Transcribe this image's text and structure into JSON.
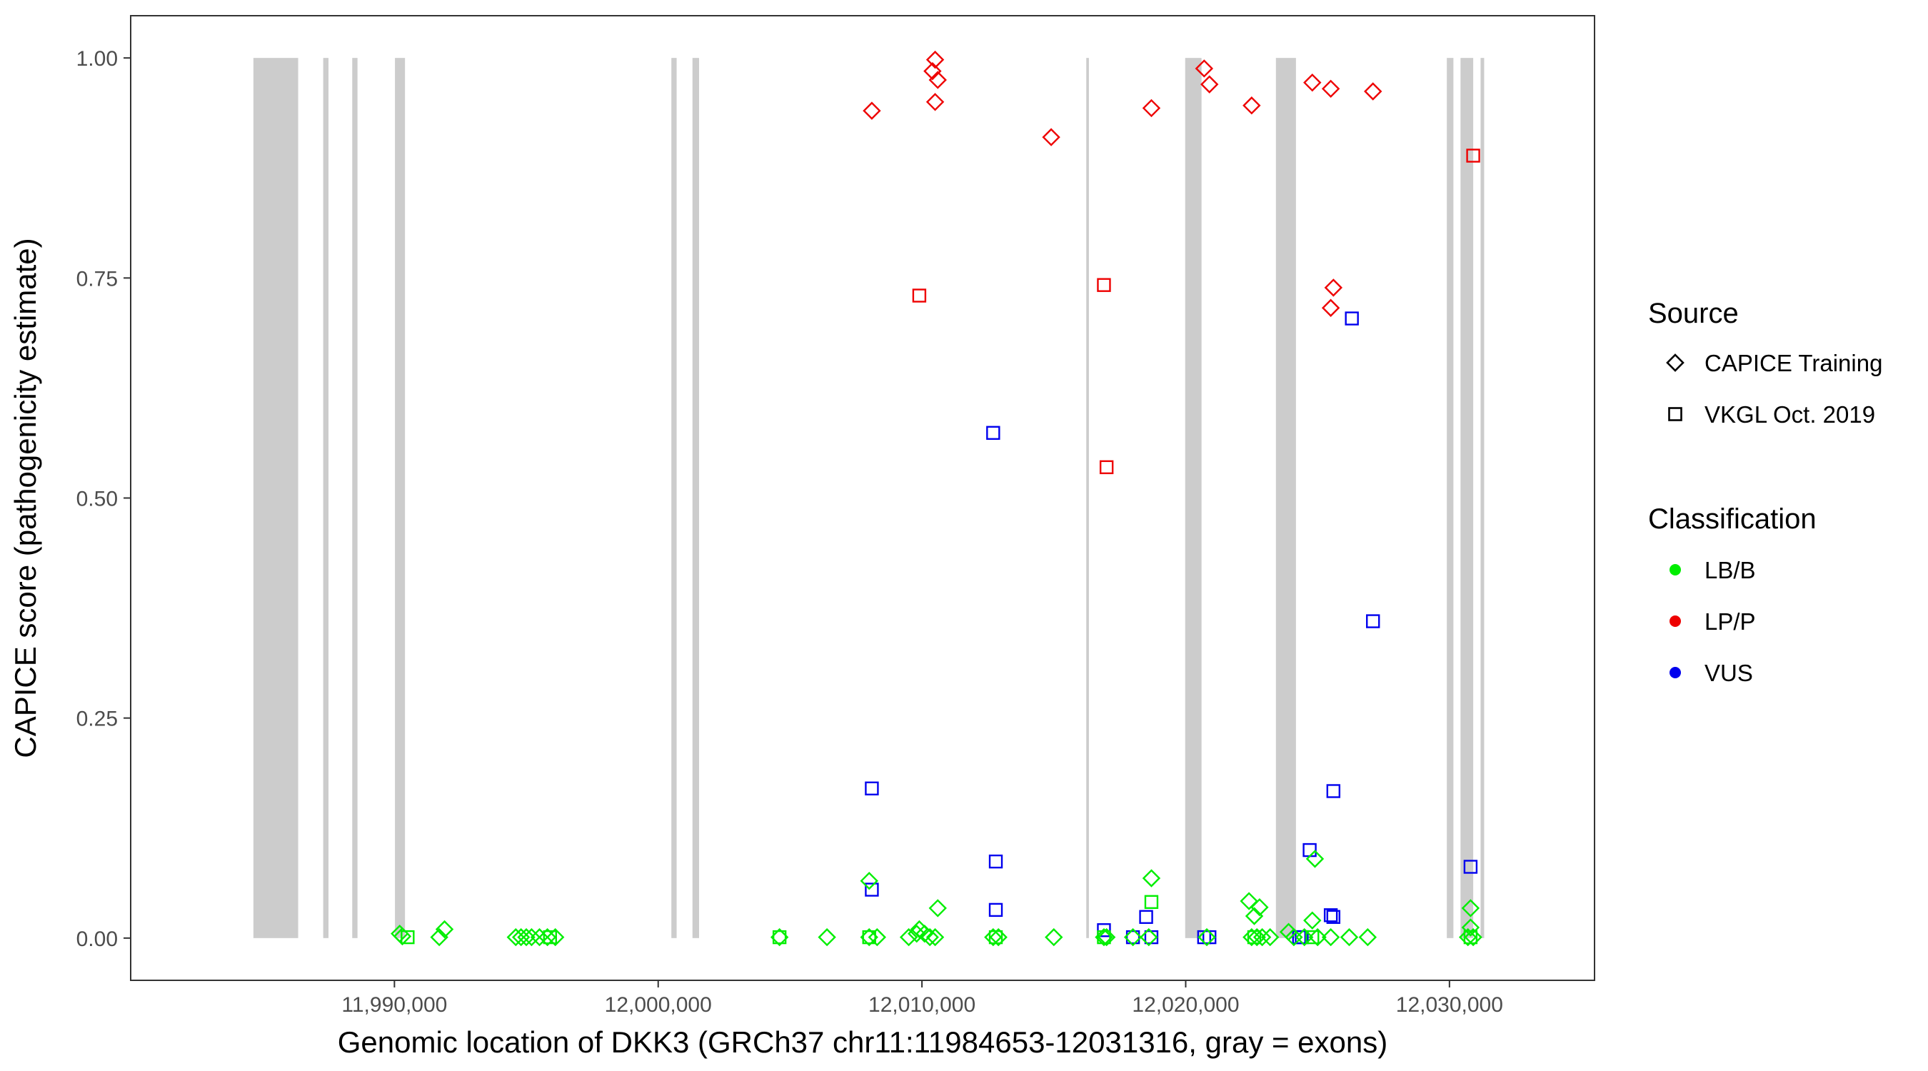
{
  "chart_data": {
    "type": "scatter",
    "xlabel": "Genomic location of DKK3 (GRCh37 chr11:11984653-12031316, gray = exons)",
    "ylabel": "CAPICE score (pathogenicity estimate)",
    "xlim": [
      11980000,
      12035500
    ],
    "ylim": [
      -0.048,
      1.048
    ],
    "x_ticks": [
      11990000,
      12000000,
      12010000,
      12020000,
      12030000
    ],
    "x_tick_labels": [
      "11,990,000",
      "12,000,000",
      "12,010,000",
      "12,020,000",
      "12,030,000"
    ],
    "y_ticks": [
      0,
      0.25,
      0.5,
      0.75,
      1
    ],
    "y_tick_labels": [
      "0.00",
      "0.25",
      "0.50",
      "0.75",
      "1.00"
    ],
    "grid": false,
    "legend_position": "right",
    "colors": {
      "LB/B": "#00ee00",
      "LP/P": "#ee0000",
      "VUS": "#0000ee",
      "exon": "#cccccc",
      "frame": "#333333"
    },
    "exons": [
      [
        11984653,
        11986350
      ],
      [
        11987300,
        11987500
      ],
      [
        11988400,
        11988600
      ],
      [
        11990020,
        11990400
      ],
      [
        12000500,
        12000700
      ],
      [
        12001300,
        12001550
      ],
      [
        12016230,
        12016330
      ],
      [
        12019980,
        12020600
      ],
      [
        12023420,
        12024180
      ],
      [
        12029900,
        12030150
      ],
      [
        12030420,
        12030900
      ],
      [
        12031180,
        12031316
      ]
    ],
    "legend": {
      "source_title": "Source",
      "source_items": [
        {
          "label": "CAPICE Training",
          "shape": "diamond"
        },
        {
          "label": "VKGL Oct. 2019",
          "shape": "square"
        }
      ],
      "classification_title": "Classification",
      "classification_items": [
        {
          "label": "LB/B",
          "color": "#00ee00"
        },
        {
          "label": "LP/P",
          "color": "#ee0000"
        },
        {
          "label": "VUS",
          "color": "#0000ee"
        }
      ]
    },
    "series": [
      {
        "source": "CAPICE Training",
        "classification": "LP/P",
        "shape": "diamond",
        "points": [
          [
            12008100,
            0.94
          ],
          [
            12010500,
            0.998
          ],
          [
            12010400,
            0.985
          ],
          [
            12010600,
            0.975
          ],
          [
            12010500,
            0.95
          ],
          [
            12014900,
            0.91
          ],
          [
            12018700,
            0.943
          ],
          [
            12020700,
            0.988
          ],
          [
            12020900,
            0.97
          ],
          [
            12022500,
            0.946
          ],
          [
            12024800,
            0.972
          ],
          [
            12025500,
            0.965
          ],
          [
            12027100,
            0.962
          ],
          [
            12025600,
            0.739
          ],
          [
            12025500,
            0.716
          ]
        ]
      },
      {
        "source": "VKGL Oct. 2019",
        "classification": "LP/P",
        "shape": "square",
        "points": [
          [
            12009900,
            0.73
          ],
          [
            12016900,
            0.742
          ],
          [
            12017000,
            0.535
          ],
          [
            12030900,
            0.889
          ]
        ]
      },
      {
        "source": "VKGL Oct. 2019",
        "classification": "VUS",
        "shape": "square",
        "points": [
          [
            12012700,
            0.574
          ],
          [
            12026300,
            0.704
          ],
          [
            12027100,
            0.36
          ],
          [
            12008100,
            0.17
          ],
          [
            12025600,
            0.167
          ],
          [
            12012800,
            0.087
          ],
          [
            12024700,
            0.1
          ],
          [
            12030800,
            0.081
          ],
          [
            12008100,
            0.055
          ],
          [
            12012800,
            0.032
          ],
          [
            12018500,
            0.024
          ],
          [
            12025500,
            0.026
          ],
          [
            12025600,
            0.024
          ],
          [
            12016900,
            0.009
          ],
          [
            12018000,
            0.001
          ],
          [
            12018700,
            0.001
          ],
          [
            12020700,
            0.001
          ],
          [
            12020900,
            0.001
          ],
          [
            12024300,
            0.001
          ],
          [
            12024400,
            0.001
          ]
        ]
      },
      {
        "source": "CAPICE Training",
        "classification": "LB/B",
        "shape": "diamond",
        "points": [
          [
            11990200,
            0.005
          ],
          [
            11990300,
            0.002
          ],
          [
            11991900,
            0.01
          ],
          [
            11991700,
            0.001
          ],
          [
            11994600,
            0.001
          ],
          [
            11994800,
            0.001
          ],
          [
            11995000,
            0.001
          ],
          [
            11995200,
            0.001
          ],
          [
            11995500,
            0.001
          ],
          [
            11995800,
            0.001
          ],
          [
            11996100,
            0.001
          ],
          [
            12004600,
            0.001
          ],
          [
            12006400,
            0.001
          ],
          [
            12008000,
            0.065
          ],
          [
            12008000,
            0.001
          ],
          [
            12008300,
            0.001
          ],
          [
            12009500,
            0.001
          ],
          [
            12009800,
            0.005
          ],
          [
            12009900,
            0.01
          ],
          [
            12010100,
            0.005
          ],
          [
            12010300,
            0.001
          ],
          [
            12010500,
            0.001
          ],
          [
            12010600,
            0.034
          ],
          [
            12012700,
            0.001
          ],
          [
            12012900,
            0.001
          ],
          [
            12015000,
            0.001
          ],
          [
            12016900,
            0.001
          ],
          [
            12017000,
            0.001
          ],
          [
            12018000,
            0.001
          ],
          [
            12018700,
            0.068
          ],
          [
            12018600,
            0.001
          ],
          [
            12020800,
            0.001
          ],
          [
            12022400,
            0.042
          ],
          [
            12022600,
            0.025
          ],
          [
            12022800,
            0.035
          ],
          [
            12022500,
            0.001
          ],
          [
            12022700,
            0.001
          ],
          [
            12022900,
            0.001
          ],
          [
            12023200,
            0.001
          ],
          [
            12023900,
            0.007
          ],
          [
            12024100,
            0.001
          ],
          [
            12024500,
            0.001
          ],
          [
            12024900,
            0.09
          ],
          [
            12024800,
            0.02
          ],
          [
            12025000,
            0.001
          ],
          [
            12025500,
            0.001
          ],
          [
            12026200,
            0.001
          ],
          [
            12026900,
            0.001
          ],
          [
            12030800,
            0.034
          ],
          [
            12030800,
            0.012
          ],
          [
            12030700,
            0.001
          ],
          [
            12030900,
            0.001
          ]
        ]
      },
      {
        "source": "VKGL Oct. 2019",
        "classification": "LB/B",
        "shape": "square",
        "points": [
          [
            11990500,
            0.001
          ],
          [
            11995900,
            0.001
          ],
          [
            12004600,
            0.001
          ],
          [
            12008000,
            0.001
          ],
          [
            12012800,
            0.001
          ],
          [
            12018700,
            0.041
          ],
          [
            12016900,
            0.001
          ],
          [
            12022600,
            0.001
          ],
          [
            12024800,
            0.001
          ],
          [
            12030800,
            0.001
          ]
        ]
      }
    ]
  }
}
